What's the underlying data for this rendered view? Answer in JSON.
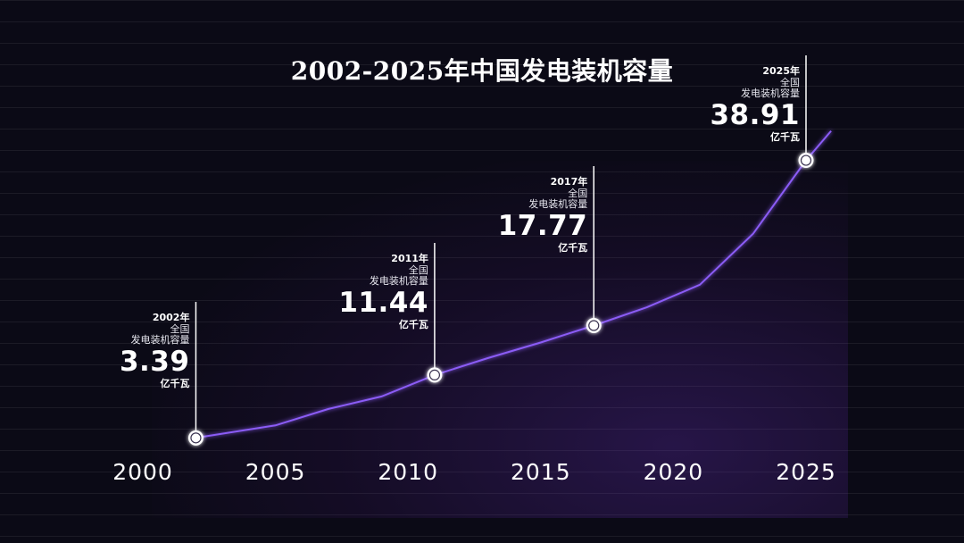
{
  "chart_data": {
    "type": "line",
    "title": "2002-2025年中国发电装机容量",
    "xlim": [
      2000,
      2025
    ],
    "ylim": [
      0,
      40
    ],
    "xticks": [
      "2000",
      "2005",
      "2010",
      "2015",
      "2020",
      "2025"
    ],
    "grid": "horizontal",
    "series": [
      {
        "x": [
          2002,
          2005,
          2007,
          2009,
          2011,
          2013,
          2015,
          2016,
          2017,
          2019,
          2021,
          2023,
          2025
        ],
        "values": [
          3.39,
          5.0,
          7.1,
          8.7,
          11.44,
          13.6,
          15.6,
          16.7,
          17.77,
          20.1,
          23.0,
          29.5,
          38.91
        ]
      }
    ],
    "annotations": [
      {
        "x": 2002,
        "value": 3.39,
        "year_label": "2002年",
        "line1": "全国",
        "line2": "发电装机容量",
        "value_text": "3.39",
        "unit": "亿千瓦"
      },
      {
        "x": 2011,
        "value": 11.44,
        "year_label": "2011年",
        "line1": "全国",
        "line2": "发电装机容量",
        "value_text": "11.44",
        "unit": "亿千瓦"
      },
      {
        "x": 2017,
        "value": 17.77,
        "year_label": "2017年",
        "line1": "全国",
        "line2": "发电装机容量",
        "value_text": "17.77",
        "unit": "亿千瓦"
      },
      {
        "x": 2025,
        "value": 38.91,
        "year_label": "2025年",
        "line1": "全国",
        "line2": "发电装机容量",
        "value_text": "38.91",
        "unit": "亿千瓦"
      }
    ],
    "colors": {
      "line": "#8b5cf6",
      "marker_fill": "#ffffff",
      "background": "#0b0a16"
    }
  }
}
